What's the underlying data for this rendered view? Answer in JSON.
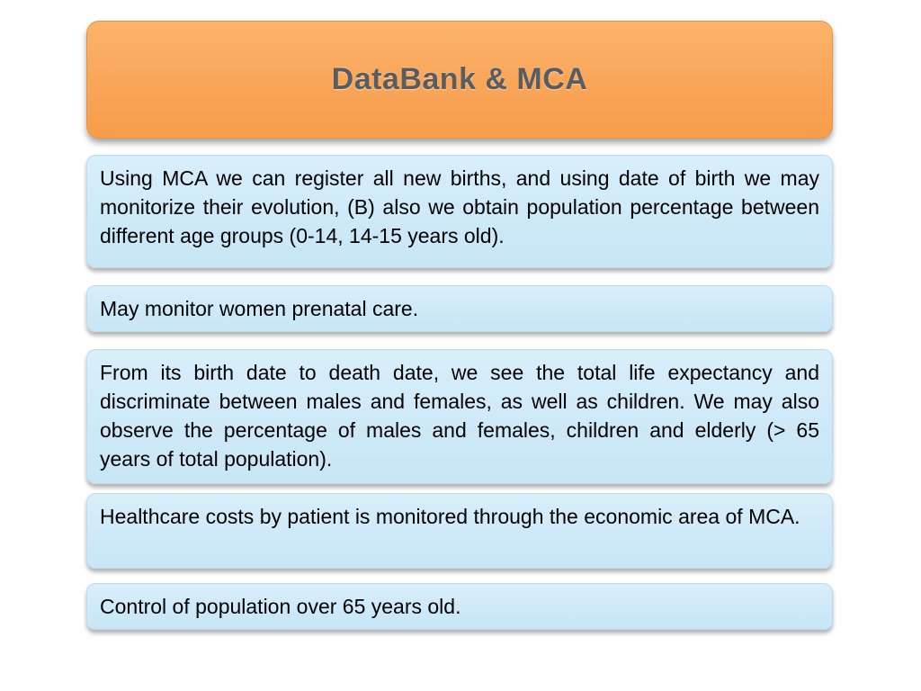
{
  "slide": {
    "title": "DataBank & MCA",
    "colors": {
      "header_background": "#F9A558",
      "header_border": "#E89240",
      "title_text": "#5B5C5E",
      "box_background": "#CDE9F8",
      "body_text": "#000000",
      "page_background": "#FFFFFF"
    },
    "boxes": [
      {
        "text": "Using MCA we can register all new births, and using date of birth we may monitorize their evolution, (B) also we obtain population percentage between different age groups (0-14, 14-15 years old)."
      },
      {
        "text": "May monitor women prenatal care."
      },
      {
        "text": "From its birth date to death date, we see the total life expectancy and discriminate between males and females, as well as children. We may also observe the percentage of males and females, children and elderly (> 65 years of total population)."
      },
      {
        "text": "Healthcare costs by patient is monitored through the economic area of MCA."
      },
      {
        "text": "Control of population over 65 years old."
      }
    ]
  }
}
